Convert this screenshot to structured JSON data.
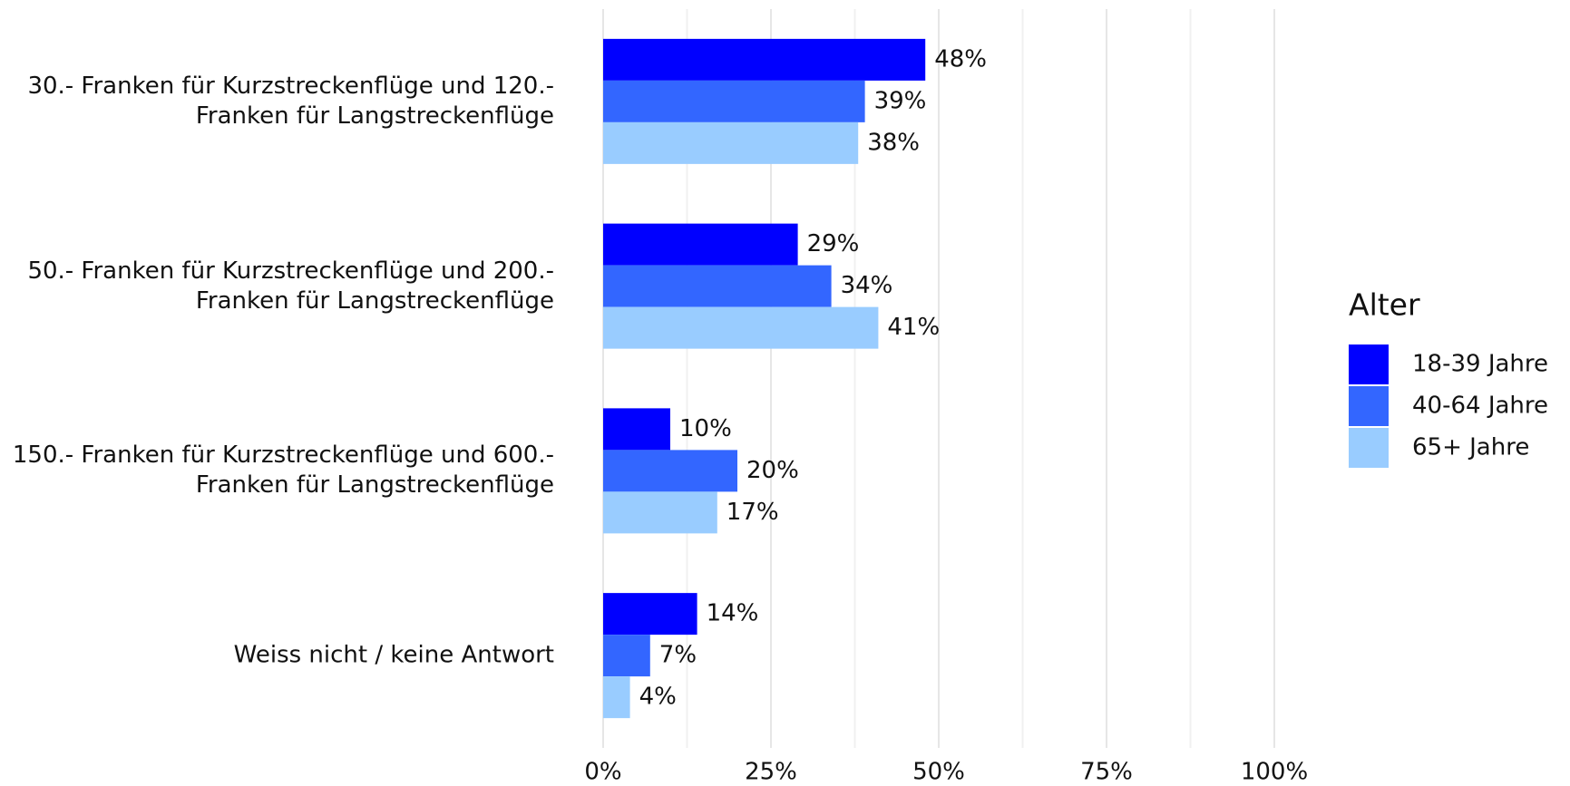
{
  "chart_data": {
    "type": "bar",
    "orientation": "horizontal",
    "categories": [
      "30.- Franken für Kurzstreckenflüge und 120.-\nFranken für Langstreckenflüge",
      "50.- Franken für Kurzstreckenflüge und 200.-\nFranken für Langstreckenflüge",
      "150.- Franken für Kurzstreckenflüge und 600.-\nFranken für Langstreckenflüge",
      "Weiss nicht / keine Antwort"
    ],
    "series": [
      {
        "name": "18-39 Jahre",
        "color": "#0000ff",
        "values": [
          48,
          29,
          10,
          14
        ],
        "value_labels": [
          "48%",
          "29%",
          "10%",
          "14%"
        ]
      },
      {
        "name": "40-64 Jahre",
        "color": "#3366ff",
        "values": [
          39,
          34,
          20,
          7
        ],
        "value_labels": [
          "39%",
          "34%",
          "20%",
          "7%"
        ]
      },
      {
        "name": "65+ Jahre",
        "color": "#99ccff",
        "values": [
          38,
          41,
          17,
          4
        ],
        "value_labels": [
          "38%",
          "41%",
          "17%",
          "4%"
        ]
      }
    ],
    "legend_title": "Alter",
    "legend": "right",
    "xlim": [
      0,
      100
    ],
    "xticks": [
      {
        "value": 0,
        "label": "0%"
      },
      {
        "value": 25,
        "label": "25%"
      },
      {
        "value": 50,
        "label": "50%"
      },
      {
        "value": 75,
        "label": "75%"
      },
      {
        "value": 100,
        "label": "100%"
      }
    ],
    "xminor_ticks": [
      12.5,
      37.5,
      62.5,
      87.5
    ],
    "grid": true
  }
}
